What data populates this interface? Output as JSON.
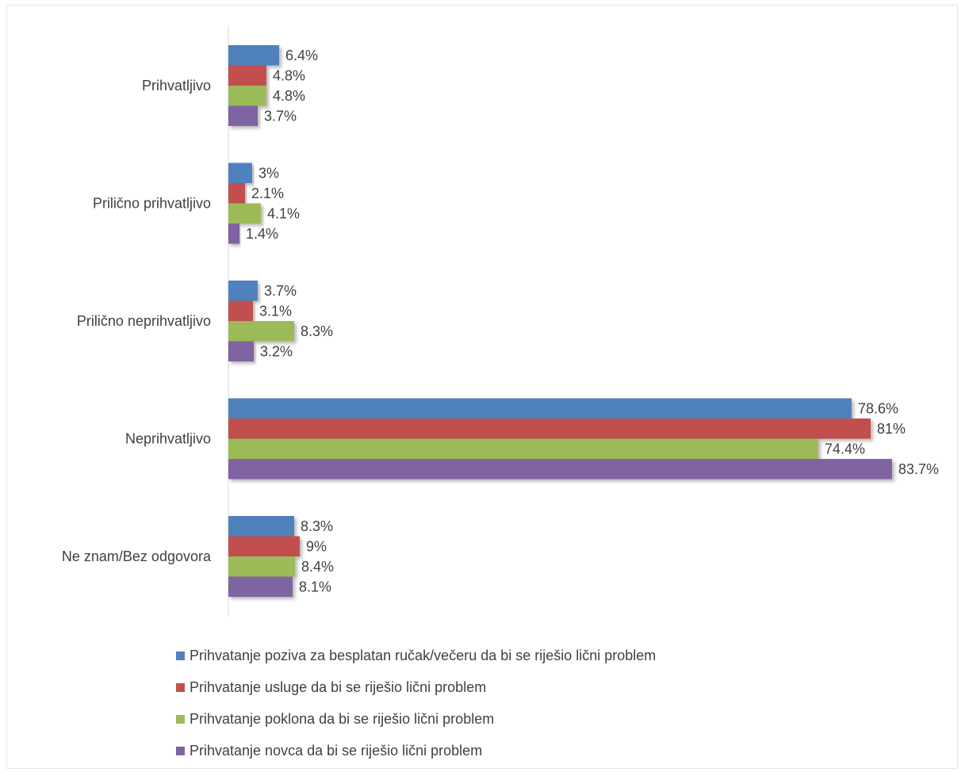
{
  "chart_data": {
    "type": "bar",
    "orientation": "horizontal",
    "categories": [
      "Prihvatljivo",
      "Prilično prihvatljivo",
      "Prilično neprihvatljivo",
      "Neprihvatljivo",
      "Ne znam/Bez odgovora"
    ],
    "series": [
      {
        "name": "Prihvatanje poziva za besplatan ručak/večeru da bi se riješio lični problem",
        "color": "#4f81bd",
        "values": [
          6.4,
          3,
          3.7,
          78.6,
          8.3
        ],
        "labels": [
          "6.4%",
          "3%",
          "3.7%",
          "78.6%",
          "8.3%"
        ]
      },
      {
        "name": "Prihvatanje usluge da bi se riješio lični problem",
        "color": "#c0504d",
        "values": [
          4.8,
          2.1,
          3.1,
          81,
          9
        ],
        "labels": [
          "4.8%",
          "2.1%",
          "3.1%",
          "81%",
          "9%"
        ]
      },
      {
        "name": "Prihvatanje poklona da bi se riješio lični problem",
        "color": "#9bbb59",
        "values": [
          4.8,
          4.1,
          8.3,
          74.4,
          8.4
        ],
        "labels": [
          "4.8%",
          "4.1%",
          "8.3%",
          "74.4%",
          "8.4%"
        ]
      },
      {
        "name": "Prihvatanje novca da bi se riješio lični problem",
        "color": "#8064a2",
        "values": [
          3.7,
          1.4,
          3.2,
          83.7,
          8.1
        ],
        "labels": [
          "3.7%",
          "1.4%",
          "3.2%",
          "83.7%",
          "8.1%"
        ]
      }
    ],
    "xlim": [
      0,
      100
    ],
    "grid": false,
    "legend_position": "bottom"
  }
}
